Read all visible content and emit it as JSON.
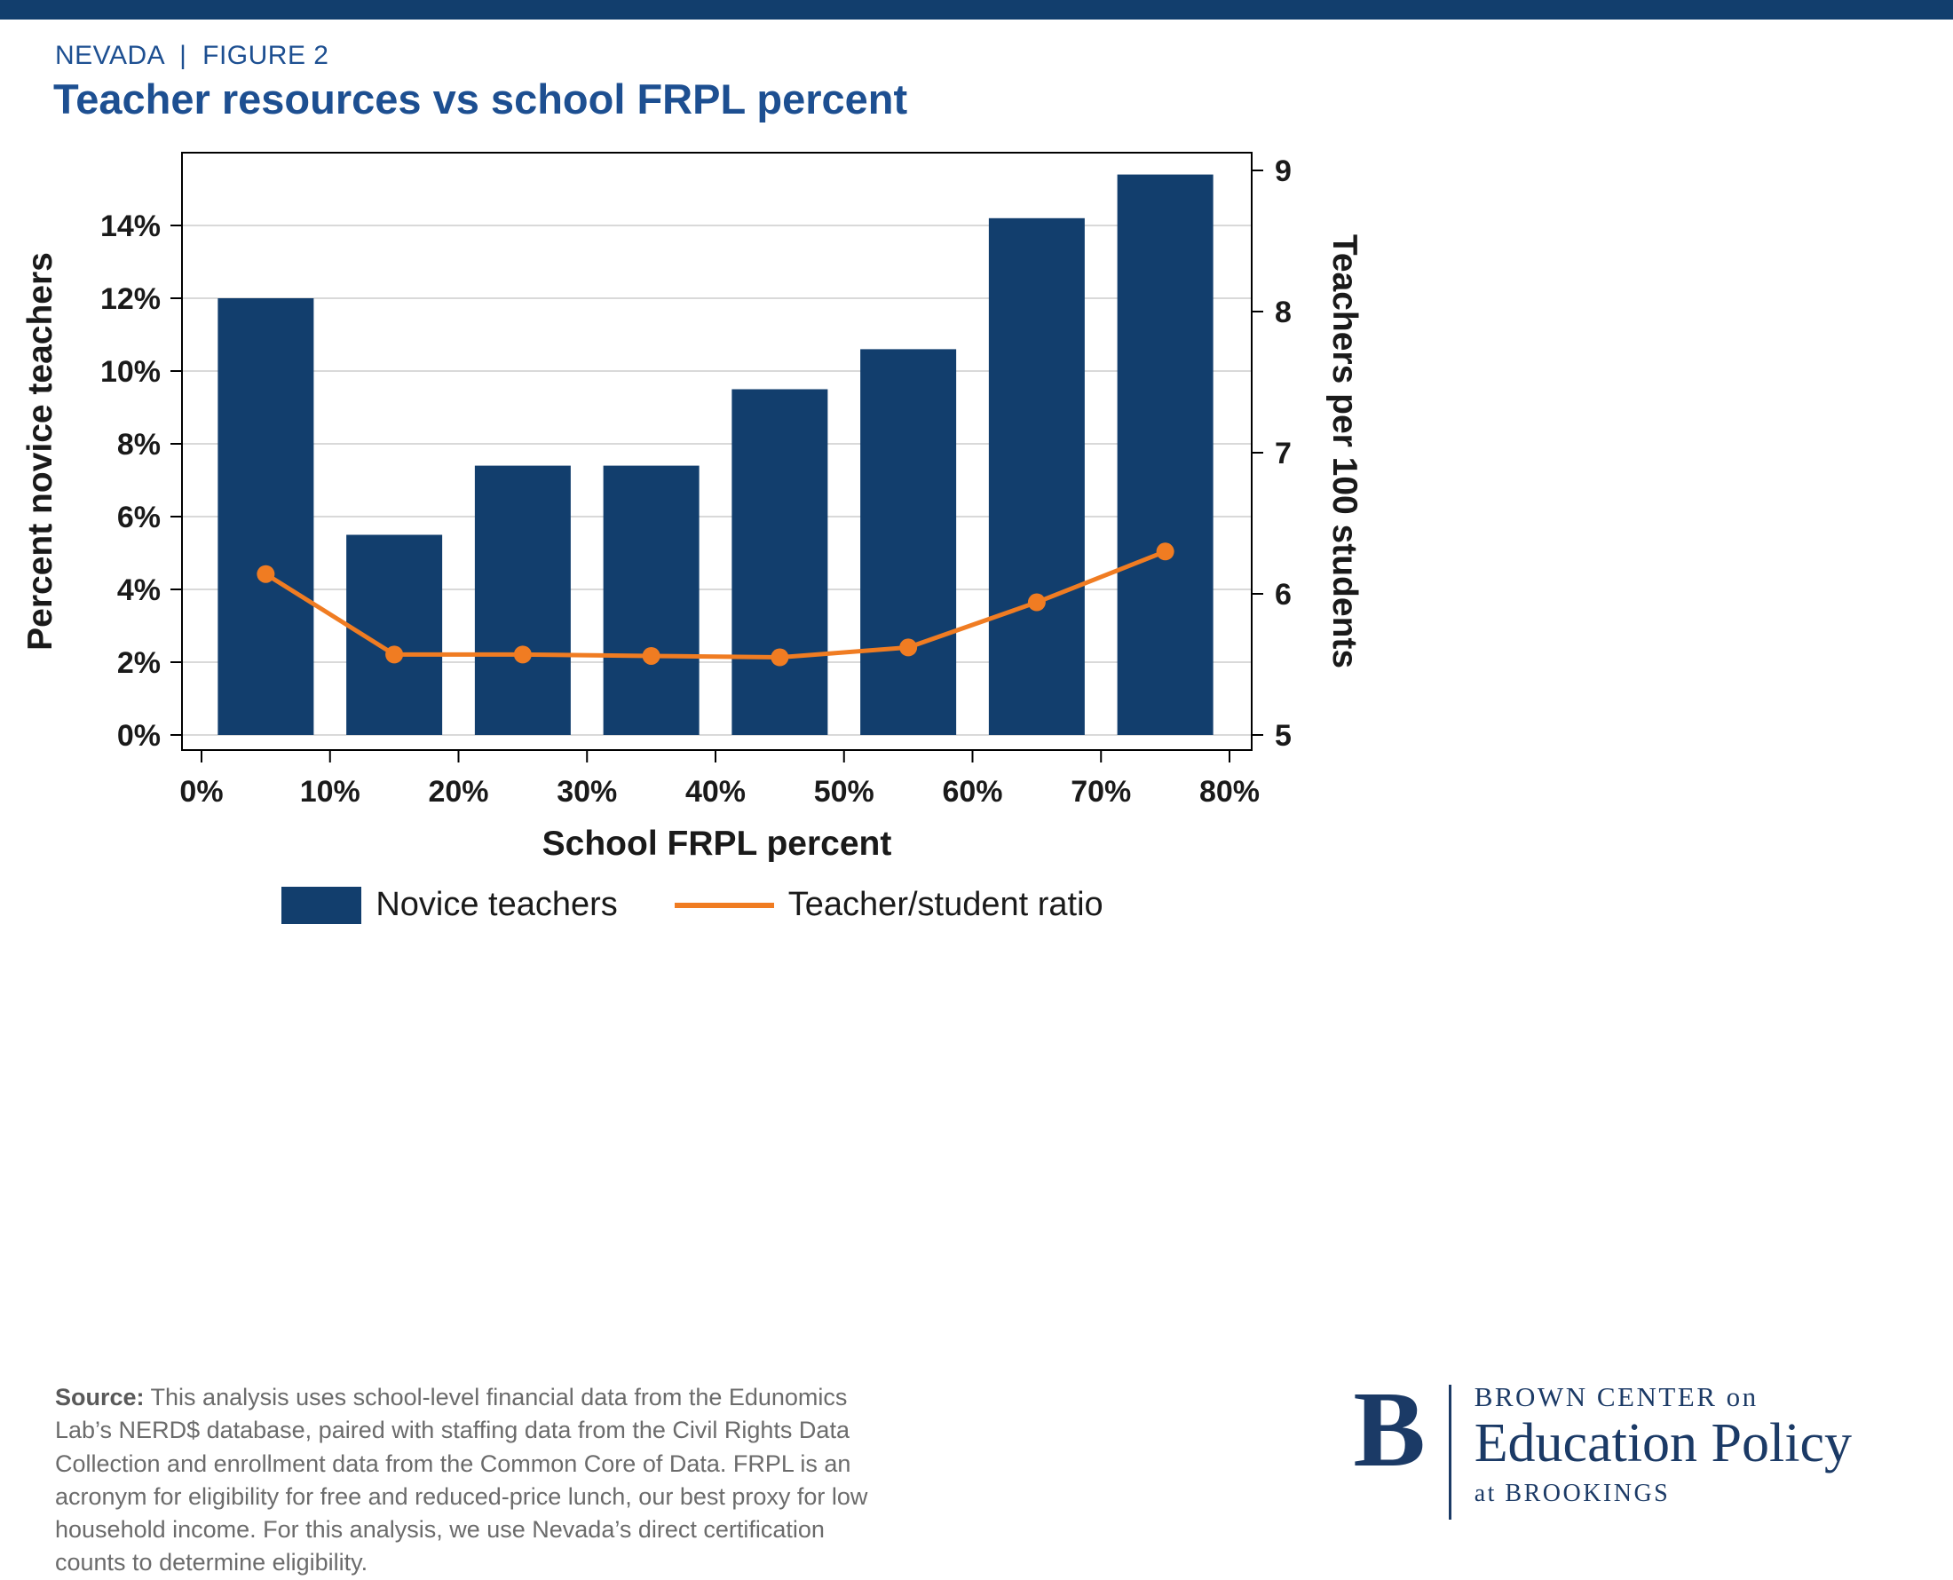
{
  "header": {
    "eyebrow": "NEVADA  |  FIGURE 2",
    "title": "Teacher resources vs school FRPL percent"
  },
  "chart_data": {
    "type": "bar",
    "title": "Teacher resources vs school FRPL percent",
    "xlabel": "School FRPL percent",
    "ylabel_left": "Percent novice teachers",
    "ylabel_right": "Teachers per 100 students",
    "x_centers": [
      5,
      15,
      25,
      35,
      45,
      55,
      65,
      75
    ],
    "x_axis": {
      "min": 0,
      "max": 80,
      "ticks": [
        0,
        10,
        20,
        30,
        40,
        50,
        60,
        70,
        80
      ],
      "tick_labels": [
        "0%",
        "10%",
        "20%",
        "30%",
        "40%",
        "50%",
        "60%",
        "70%",
        "80%"
      ]
    },
    "left_axis": {
      "min": 0,
      "max": 16,
      "ticks": [
        0,
        2,
        4,
        6,
        8,
        10,
        12,
        14
      ],
      "tick_labels": [
        "0%",
        "2%",
        "4%",
        "6%",
        "8%",
        "10%",
        "12%",
        "14%"
      ]
    },
    "right_axis": {
      "min": 5,
      "max": 9,
      "ticks": [
        5,
        6,
        7,
        8,
        9
      ],
      "tick_labels": [
        "5",
        "6",
        "7",
        "8",
        "9"
      ]
    },
    "series": [
      {
        "name": "Novice teachers",
        "type": "bar",
        "axis": "left",
        "values": [
          12.0,
          5.5,
          7.4,
          7.4,
          9.5,
          10.6,
          14.2,
          15.4
        ]
      },
      {
        "name": "Teacher/student ratio",
        "type": "line",
        "axis": "right",
        "values": [
          6.14,
          5.57,
          5.57,
          5.56,
          5.55,
          5.62,
          5.94,
          6.3
        ]
      }
    ],
    "grid": true,
    "legend_position": "bottom"
  },
  "legend": {
    "bar_label": "Novice teachers",
    "line_label": "Teacher/student ratio"
  },
  "footer": {
    "source_label": "Source:",
    "source_text": " This analysis uses school-level financial data from the Edunomics Lab’s NERD$ database, paired with staffing data from the Civil Rights Data Collection and enrollment data from the Common Core of Data. FRPL is an acronym for eligibility for free and reduced-price lunch, our best proxy for low household income. For this analysis, we use Nevada’s direct certification counts to determine eligibility.",
    "logo": {
      "letter": "B",
      "line1": "BROWN CENTER on",
      "line2": "Education Policy",
      "line3": "at BROOKINGS"
    }
  },
  "colors": {
    "navy": "#123e6d",
    "title_blue": "#1d4f91",
    "orange": "#f07c22",
    "grid": "#d9d9d9",
    "axis_text": "#1a1a1a",
    "source_gray": "#6b6b6b",
    "logo_navy": "#1b3a66"
  }
}
